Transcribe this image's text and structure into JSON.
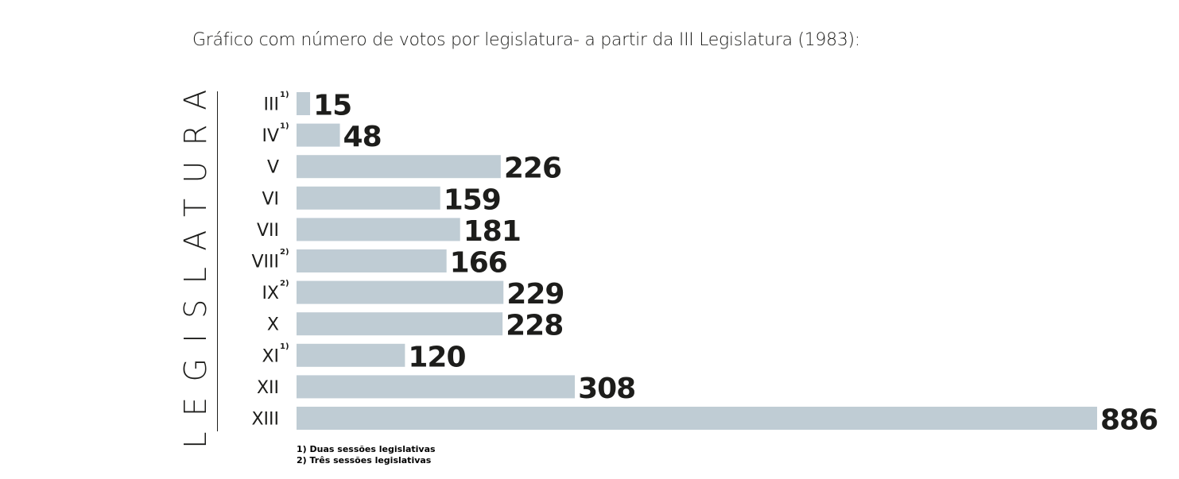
{
  "chart_data": {
    "type": "bar",
    "orientation": "horizontal",
    "title": "Gráfico com número de votos por legislatura- a partir da III Legislatura (1983):",
    "ylabel": "LEGISLATURA",
    "xlabel": "",
    "categories": [
      "III",
      "IV",
      "V",
      "VI",
      "VII",
      "VIII",
      "IX",
      "X",
      "XI",
      "XII",
      "XIII"
    ],
    "superscripts": [
      "1)",
      "1)",
      "",
      "",
      "",
      "2)",
      "2)",
      "",
      "1)",
      "",
      ""
    ],
    "values": [
      15,
      48,
      226,
      159,
      181,
      166,
      229,
      228,
      120,
      308,
      886
    ],
    "xlim": [
      0,
      886
    ],
    "grid": false,
    "bar_color": "#bfccd4",
    "notes": [
      "1) Duas sessões legislativas",
      "2) Três sessões legislativas"
    ]
  }
}
